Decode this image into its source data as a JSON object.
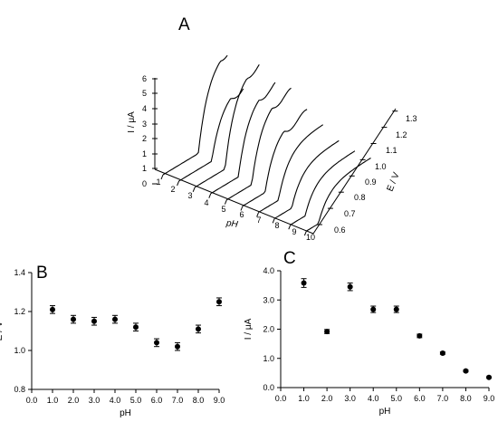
{
  "panels": {
    "A": "A",
    "B": "B",
    "C": "C"
  },
  "chart_data": [
    {
      "panel": "A",
      "type": "line",
      "axes": {
        "current_label": "I / μA",
        "current_ticks": [
          "0",
          "1",
          "1",
          "2",
          "3",
          "4",
          "5",
          "6"
        ],
        "ph_label": "pH",
        "ph_ticks": [
          "1",
          "2",
          "3",
          "4",
          "5",
          "6",
          "7",
          "8",
          "9",
          "10"
        ],
        "potential_label": "E / V",
        "potential_ticks": [
          "0.6",
          "0.7",
          "0.8",
          "0.9",
          "1.0",
          "1.1",
          "1.2",
          "1.3"
        ]
      },
      "ylim": [
        0,
        6
      ],
      "series": [
        {
          "ph": 1,
          "peak_potential": 1.21,
          "peak_current": 3.6
        },
        {
          "ph": 2,
          "peak_potential": 1.16,
          "peak_current": 1.9
        },
        {
          "ph": 3,
          "peak_potential": 1.15,
          "peak_current": 3.5
        },
        {
          "ph": 4,
          "peak_potential": 1.16,
          "peak_current": 2.7
        },
        {
          "ph": 5,
          "peak_potential": 1.12,
          "peak_current": 2.7
        },
        {
          "ph": 6,
          "peak_potential": 1.04,
          "peak_current": 1.8
        },
        {
          "ph": 7,
          "peak_potential": 1.02,
          "peak_current": 1.2
        },
        {
          "ph": 8,
          "peak_potential": 1.11,
          "peak_current": 0.6
        },
        {
          "ph": 9,
          "peak_potential": 1.25,
          "peak_current": 0.35
        },
        {
          "ph": 10,
          "peak_potential": 1.3,
          "peak_current": 0.3
        }
      ]
    },
    {
      "panel": "B",
      "type": "scatter",
      "xlabel": "pH",
      "ylabel": "E / V",
      "xlim": [
        0,
        9
      ],
      "ylim": [
        0.8,
        1.4
      ],
      "x_ticks": [
        "0.0",
        "1.0",
        "2.0",
        "3.0",
        "4.0",
        "5.0",
        "6.0",
        "7.0",
        "8.0",
        "9.0"
      ],
      "y_ticks": [
        "0.8",
        "1.0",
        "1.2",
        "1.4"
      ],
      "points": [
        {
          "x": 1,
          "y": 1.21,
          "err": 0.02
        },
        {
          "x": 2,
          "y": 1.16,
          "err": 0.02
        },
        {
          "x": 3,
          "y": 1.15,
          "err": 0.02
        },
        {
          "x": 4,
          "y": 1.16,
          "err": 0.02
        },
        {
          "x": 5,
          "y": 1.12,
          "err": 0.02
        },
        {
          "x": 6,
          "y": 1.04,
          "err": 0.02
        },
        {
          "x": 7,
          "y": 1.02,
          "err": 0.02
        },
        {
          "x": 8,
          "y": 1.11,
          "err": 0.02
        },
        {
          "x": 9,
          "y": 1.25,
          "err": 0.02
        }
      ]
    },
    {
      "panel": "C",
      "type": "scatter",
      "xlabel": "pH",
      "ylabel": "I / μA",
      "xlim": [
        0,
        9
      ],
      "ylim": [
        0,
        4
      ],
      "x_ticks": [
        "0.0",
        "1.0",
        "2.0",
        "3.0",
        "4.0",
        "5.0",
        "6.0",
        "7.0",
        "8.0",
        "9.0"
      ],
      "y_ticks": [
        "0.0",
        "1.0",
        "2.0",
        "3.0",
        "4.0"
      ],
      "points": [
        {
          "x": 1,
          "y": 3.58,
          "err": 0.15
        },
        {
          "x": 2,
          "y": 1.92,
          "err": 0.07
        },
        {
          "x": 3,
          "y": 3.45,
          "err": 0.13
        },
        {
          "x": 4,
          "y": 2.68,
          "err": 0.11
        },
        {
          "x": 5,
          "y": 2.68,
          "err": 0.11
        },
        {
          "x": 6,
          "y": 1.77,
          "err": 0.06
        },
        {
          "x": 7,
          "y": 1.18,
          "err": 0.04
        },
        {
          "x": 8,
          "y": 0.57,
          "err": 0.03
        },
        {
          "x": 9,
          "y": 0.35,
          "err": 0.02
        }
      ]
    }
  ]
}
